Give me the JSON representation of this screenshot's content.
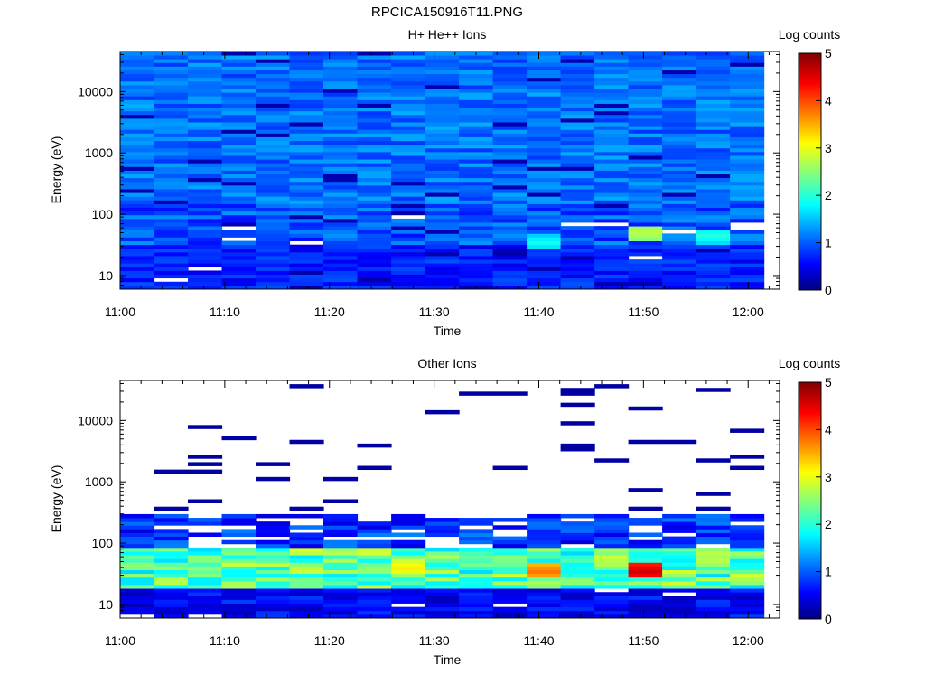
{
  "page": {
    "title": "RPCICA150916T11.PNG"
  },
  "colorbar": {
    "label": "Log counts",
    "range": [
      0,
      5
    ],
    "ticks": [
      "0",
      "1",
      "2",
      "3",
      "4",
      "5"
    ],
    "colormap": [
      "#000080",
      "#0000ff",
      "#00ffff",
      "#ffff00",
      "#ff0000",
      "#800000"
    ]
  },
  "chart_data": [
    {
      "type": "heatmap",
      "title": "H+ He++ Ions",
      "xlabel": "Time",
      "ylabel": "Energy (eV)",
      "xlim": [
        "11:00",
        "12:03"
      ],
      "ylim": [
        6,
        45000
      ],
      "yscale": "log",
      "x_ticks": [
        "11:00",
        "11:10",
        "11:20",
        "11:30",
        "11:40",
        "11:50",
        "12:00"
      ],
      "y_ticks": [
        "10",
        "100",
        "1000",
        "10000"
      ],
      "time_bins": 19,
      "energy_bins": 64,
      "approx_level": {
        "background": 1.0,
        "low_energy": 0.5,
        "hotspots": [
          {
            "time": "11:51",
            "energy_eV": 50,
            "value": 2.8
          },
          {
            "time": "11:57",
            "energy_eV": 45,
            "value": 2.0
          },
          {
            "time": "11:41",
            "energy_eV": 35,
            "value": 1.9
          }
        ]
      }
    },
    {
      "type": "heatmap",
      "title": "Other Ions",
      "xlabel": "Time",
      "ylabel": "Energy (eV)",
      "xlim": [
        "11:00",
        "12:03"
      ],
      "ylim": [
        6,
        45000
      ],
      "yscale": "log",
      "x_ticks": [
        "11:00",
        "11:10",
        "11:20",
        "11:30",
        "11:40",
        "11:50",
        "12:00"
      ],
      "y_ticks": [
        "10",
        "100",
        "1000",
        "10000"
      ],
      "time_bins": 19,
      "energy_bins": 64,
      "approx_level": {
        "band_energy_eV": [
          20,
          80
        ],
        "band_peak": 3.0,
        "hotspots": [
          {
            "time": "11:51",
            "energy_eV": 35,
            "value": 4.6
          },
          {
            "time": "11:40",
            "energy_eV": 35,
            "value": 3.8
          },
          {
            "time": "11:28",
            "energy_eV": 40,
            "value": 3.2
          }
        ],
        "high_energy": "sparse isolated counts near 0.2"
      }
    }
  ]
}
